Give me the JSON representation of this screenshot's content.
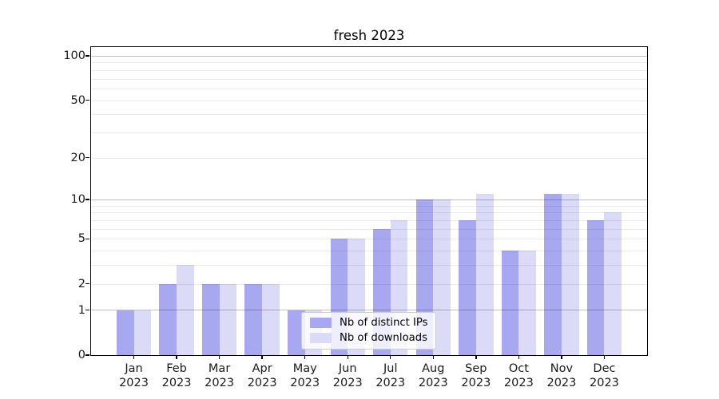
{
  "title": "fresh 2023",
  "chart_data": {
    "type": "bar",
    "title": "fresh 2023",
    "categories": [
      "Jan 2023",
      "Feb 2023",
      "Mar 2023",
      "Apr 2023",
      "May 2023",
      "Jun 2023",
      "Jul 2023",
      "Aug 2023",
      "Sep 2023",
      "Oct 2023",
      "Nov 2023",
      "Dec 2023"
    ],
    "month_names": [
      "Jan",
      "Feb",
      "Mar",
      "Apr",
      "May",
      "Jun",
      "Jul",
      "Aug",
      "Sep",
      "Oct",
      "Nov",
      "Dec"
    ],
    "year_label": "2023",
    "series": [
      {
        "name": "Nb of distinct IPs",
        "color": "#a8a8f0",
        "values": [
          1,
          2,
          2,
          2,
          1,
          5,
          6,
          10,
          7,
          4,
          11,
          7
        ]
      },
      {
        "name": "Nb of downloads",
        "color": "#dbdbf8",
        "values": [
          1,
          3,
          2,
          2,
          1,
          5,
          7,
          10,
          11,
          4,
          11,
          8
        ]
      }
    ],
    "yscale": "log1p",
    "ylim": [
      0,
      113
    ],
    "yticks": [
      {
        "value": 0,
        "label": "0"
      },
      {
        "value": 1,
        "label": "1"
      },
      {
        "value": 2,
        "label": "2"
      },
      {
        "value": 5,
        "label": "5"
      },
      {
        "value": 10,
        "label": "10"
      },
      {
        "value": 20,
        "label": "20"
      },
      {
        "value": 50,
        "label": "50"
      },
      {
        "value": 100,
        "label": "100"
      }
    ],
    "ygrid_major": [
      1,
      10,
      100
    ],
    "ygrid_minor": [
      2,
      3,
      4,
      5,
      6,
      7,
      8,
      9,
      20,
      30,
      40,
      50,
      60,
      70,
      80,
      90
    ],
    "grid": "horizontal",
    "legend_position": "lower-center",
    "xlabel": "",
    "ylabel": ""
  },
  "colors": {
    "background": "#ffffff",
    "axis": "#000000",
    "text": "#1a1a1a",
    "bar_distinct_ips": "#a8a8f0",
    "bar_downloads": "#dbdbf8",
    "grid_major": "#bfbfbf",
    "grid_minor": "#ececec",
    "legend_border": "#cccccc"
  }
}
